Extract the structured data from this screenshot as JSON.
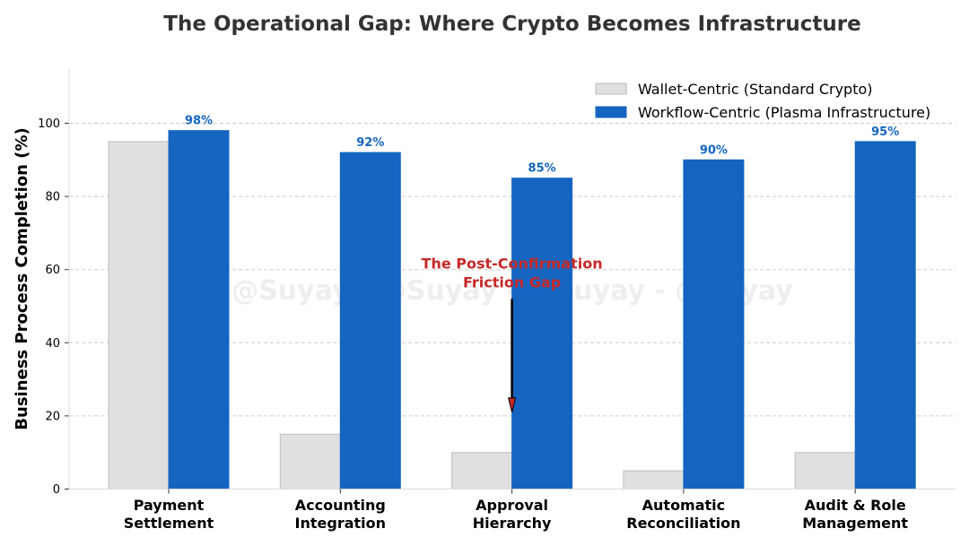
{
  "chart_data": {
    "type": "bar",
    "title": "The Operational Gap: Where Crypto Becomes Infrastructure",
    "xlabel": "",
    "ylabel": "Business Process Completion (%)",
    "ylim": [
      0,
      115
    ],
    "yticks": [
      0,
      20,
      40,
      60,
      80,
      100
    ],
    "grid": true,
    "legend_position": "top-right",
    "categories": [
      [
        "Payment",
        "Settlement"
      ],
      [
        "Accounting",
        "Integration"
      ],
      [
        "Approval",
        "Hierarchy"
      ],
      [
        "Automatic",
        "Reconciliation"
      ],
      [
        "Audit & Role",
        "Management"
      ]
    ],
    "series": [
      {
        "name": "Wallet-Centric (Standard Crypto)",
        "values": [
          95,
          15,
          10,
          5,
          10
        ],
        "color": "#e0e0e0",
        "edge": "#bdbdbd"
      },
      {
        "name": "Workflow-Centric (Plasma Infrastructure)",
        "values": [
          98,
          92,
          85,
          90,
          95
        ],
        "color": "#1565c0",
        "edge": "#1565c0"
      }
    ],
    "data_labels": [
      "98%",
      "92%",
      "85%",
      "90%",
      "95%"
    ],
    "data_label_color": "#1565c0",
    "annotation": {
      "lines": [
        "The Post-Confirmation",
        "Friction Gap"
      ],
      "category_index": 2,
      "text_y": 60,
      "arrow_from_y": 52,
      "arrow_to_y": 21,
      "color": "#c62828"
    },
    "watermark": "@Suyay - @Suyay - @Suyay - @Suyay"
  }
}
